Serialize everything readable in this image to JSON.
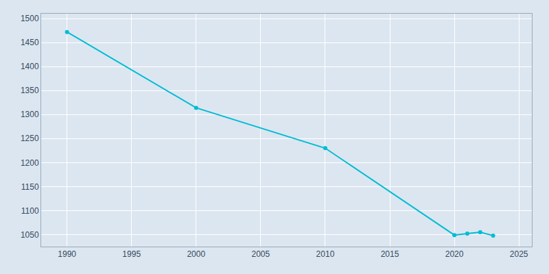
{
  "chart_data": {
    "type": "line",
    "x": [
      1990,
      2000,
      2010,
      2020,
      2021,
      2022,
      2023
    ],
    "values": [
      1472,
      1314,
      1230,
      1049,
      1052,
      1055,
      1048
    ],
    "color": "#00BCD4",
    "marker": "circle",
    "xlim": [
      1988,
      2026
    ],
    "ylim": [
      1025,
      1510
    ],
    "xticks": [
      1990,
      1995,
      2000,
      2005,
      2010,
      2015,
      2020,
      2025
    ],
    "yticks": [
      1050,
      1100,
      1150,
      1200,
      1250,
      1300,
      1350,
      1400,
      1450,
      1500
    ],
    "grid": true
  }
}
